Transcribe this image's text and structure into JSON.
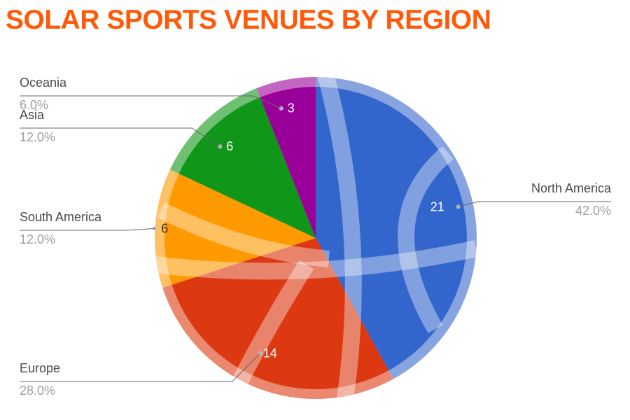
{
  "chart_data": {
    "type": "pie",
    "title": "SOLAR SPORTS VENUES BY REGION",
    "slices": [
      {
        "name": "North America",
        "value": 21,
        "value_label": "21",
        "percent_label": "42.0%",
        "color": "#3366cc",
        "ring_color": "#87a3e0",
        "label_color": "#ffffff"
      },
      {
        "name": "Europe",
        "value": 14,
        "value_label": "14",
        "percent_label": "28.0%",
        "color": "#dc3912",
        "ring_color": "#ea8870",
        "label_color": "#ffffff"
      },
      {
        "name": "South America",
        "value": 6,
        "value_label": "6",
        "percent_label": "12.0%",
        "color": "#ff9900",
        "ring_color": "#ffc166",
        "label_color": "#333333"
      },
      {
        "name": "Asia",
        "value": 6,
        "value_label": "6",
        "percent_label": "12.0%",
        "color": "#109618",
        "ring_color": "#70c074",
        "label_color": "#ffffff"
      },
      {
        "name": "Oceania",
        "value": 3,
        "value_label": "3",
        "percent_label": "6.0%",
        "color": "#990099",
        "ring_color": "#c266c2",
        "label_color": "#ffffff"
      }
    ],
    "legend_position": "outside-labels",
    "title_color": "#ff5a0a"
  }
}
